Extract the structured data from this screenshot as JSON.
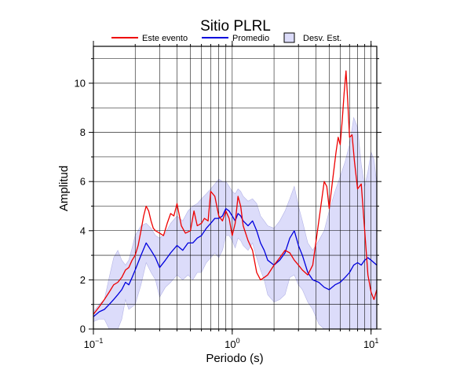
{
  "chart_data": {
    "type": "line",
    "title": "Sitio PLRL",
    "xlabel": "Periodo (s)",
    "ylabel": "Amplitud",
    "x_scale": "log",
    "xlim": [
      0.1,
      11
    ],
    "ylim": [
      0,
      11.5
    ],
    "grid": true,
    "legend_position": "top",
    "x_tick_labels": [
      {
        "value": 0.1,
        "base": "10",
        "exp": "−1"
      },
      {
        "value": 1,
        "base": "10",
        "exp": "0"
      },
      {
        "value": 10,
        "base": "10",
        "exp": "1"
      }
    ],
    "y_ticks": [
      0,
      2,
      4,
      6,
      8,
      10
    ],
    "y_tick_labels": [
      "0",
      "2",
      "4",
      "6",
      "8",
      "10"
    ],
    "series": [
      {
        "name": "Este evento",
        "color": "#ee0000",
        "x": [
          0.1,
          0.11,
          0.12,
          0.13,
          0.14,
          0.15,
          0.16,
          0.17,
          0.18,
          0.19,
          0.2,
          0.21,
          0.22,
          0.23,
          0.24,
          0.25,
          0.26,
          0.27,
          0.28,
          0.3,
          0.32,
          0.34,
          0.36,
          0.38,
          0.4,
          0.43,
          0.46,
          0.5,
          0.53,
          0.56,
          0.6,
          0.63,
          0.67,
          0.7,
          0.75,
          0.8,
          0.85,
          0.9,
          0.95,
          1.0,
          1.05,
          1.1,
          1.15,
          1.2,
          1.3,
          1.4,
          1.5,
          1.6,
          1.7,
          1.8,
          2.0,
          2.2,
          2.4,
          2.6,
          2.8,
          3.0,
          3.2,
          3.5,
          3.8,
          4.0,
          4.3,
          4.6,
          4.8,
          5.0,
          5.3,
          5.6,
          5.8,
          6.0,
          6.2,
          6.4,
          6.6,
          6.8,
          7.0,
          7.3,
          7.6,
          8.0,
          8.5,
          9.0,
          9.5,
          10.0,
          10.5,
          11.0
        ],
        "y": [
          0.6,
          0.9,
          1.2,
          1.5,
          1.8,
          1.9,
          2.1,
          2.4,
          2.5,
          2.8,
          3.0,
          3.4,
          4.0,
          4.6,
          5.0,
          4.8,
          4.4,
          4.1,
          4.0,
          3.9,
          3.8,
          4.3,
          4.7,
          4.6,
          5.1,
          4.2,
          3.9,
          4.0,
          4.8,
          4.2,
          4.3,
          4.5,
          4.4,
          5.6,
          5.4,
          4.6,
          4.4,
          4.8,
          4.5,
          3.8,
          4.3,
          5.4,
          5.0,
          4.2,
          3.6,
          3.2,
          2.3,
          2.0,
          2.1,
          2.2,
          2.6,
          2.9,
          3.2,
          3.1,
          2.8,
          2.6,
          2.4,
          2.2,
          2.6,
          3.5,
          4.8,
          6.0,
          5.8,
          4.9,
          6.1,
          7.2,
          7.8,
          7.5,
          8.5,
          9.6,
          10.5,
          9.2,
          7.8,
          7.9,
          6.8,
          5.7,
          5.9,
          4.0,
          2.2,
          1.5,
          1.2,
          1.6
        ]
      },
      {
        "name": "Promedio",
        "color": "#0000dd",
        "x": [
          0.1,
          0.11,
          0.12,
          0.13,
          0.14,
          0.15,
          0.16,
          0.17,
          0.18,
          0.19,
          0.2,
          0.22,
          0.24,
          0.26,
          0.28,
          0.3,
          0.33,
          0.36,
          0.4,
          0.44,
          0.48,
          0.52,
          0.56,
          0.6,
          0.65,
          0.7,
          0.75,
          0.8,
          0.85,
          0.9,
          0.95,
          1.0,
          1.05,
          1.1,
          1.15,
          1.2,
          1.3,
          1.4,
          1.5,
          1.6,
          1.7,
          1.8,
          2.0,
          2.2,
          2.4,
          2.6,
          2.8,
          3.0,
          3.2,
          3.5,
          3.8,
          4.2,
          4.6,
          5.0,
          5.5,
          6.0,
          6.5,
          7.0,
          7.5,
          8.0,
          8.5,
          9.0,
          9.5,
          10.0,
          10.5,
          11.0
        ],
        "y": [
          0.5,
          0.7,
          0.8,
          1.0,
          1.2,
          1.4,
          1.6,
          1.9,
          1.8,
          2.1,
          2.4,
          3.0,
          3.5,
          3.2,
          2.9,
          2.5,
          2.8,
          3.1,
          3.4,
          3.2,
          3.5,
          3.5,
          3.7,
          3.8,
          4.1,
          4.3,
          4.5,
          4.5,
          4.6,
          4.9,
          4.8,
          4.6,
          4.4,
          4.7,
          4.6,
          4.4,
          4.2,
          4.4,
          4.0,
          3.5,
          3.2,
          2.8,
          2.6,
          2.8,
          3.1,
          3.7,
          4.0,
          3.4,
          3.0,
          2.3,
          2.0,
          1.9,
          1.7,
          1.6,
          1.8,
          1.9,
          2.1,
          2.3,
          2.6,
          2.7,
          2.6,
          2.8,
          2.9,
          2.8,
          2.7,
          2.6
        ]
      }
    ],
    "band": {
      "name": "Desv. Est.",
      "color": "#dcdcfa",
      "edge_color": "#b4b4e6",
      "x": [
        0.1,
        0.11,
        0.12,
        0.13,
        0.14,
        0.15,
        0.16,
        0.17,
        0.18,
        0.19,
        0.2,
        0.22,
        0.24,
        0.26,
        0.28,
        0.3,
        0.33,
        0.36,
        0.4,
        0.44,
        0.48,
        0.52,
        0.56,
        0.6,
        0.65,
        0.7,
        0.75,
        0.8,
        0.85,
        0.9,
        0.95,
        1.0,
        1.05,
        1.1,
        1.15,
        1.2,
        1.3,
        1.4,
        1.5,
        1.6,
        1.7,
        1.8,
        2.0,
        2.2,
        2.4,
        2.6,
        2.8,
        3.0,
        3.2,
        3.5,
        3.8,
        4.2,
        4.6,
        5.0,
        5.5,
        6.0,
        6.5,
        7.0,
        7.5,
        8.0,
        8.5,
        9.0,
        9.5,
        10.0,
        10.5,
        11.0
      ],
      "upper": [
        0.7,
        1.0,
        1.2,
        2.1,
        2.9,
        3.2,
        2.8,
        2.6,
        2.8,
        3.3,
        3.8,
        4.2,
        4.3,
        4.1,
        3.8,
        3.7,
        3.9,
        4.3,
        4.6,
        4.4,
        4.8,
        5.0,
        5.1,
        5.3,
        5.5,
        5.7,
        5.9,
        6.1,
        6.0,
        6.0,
        5.8,
        5.6,
        5.5,
        5.7,
        5.6,
        5.4,
        5.2,
        5.3,
        5.1,
        4.6,
        4.4,
        4.2,
        4.1,
        4.4,
        4.8,
        5.3,
        5.8,
        5.0,
        4.4,
        3.5,
        3.2,
        3.6,
        4.0,
        4.8,
        5.6,
        6.2,
        6.8,
        7.5,
        8.6,
        8.2,
        6.7,
        5.8,
        6.4,
        7.2,
        6.9,
        5.9
      ]
    },
    "legend": [
      {
        "label": "Este evento",
        "kind": "line",
        "color": "#ee0000"
      },
      {
        "label": "Promedio",
        "kind": "line",
        "color": "#0000dd"
      },
      {
        "label": "Desv. Est.",
        "kind": "box",
        "color": "#dcdcfa"
      }
    ]
  }
}
